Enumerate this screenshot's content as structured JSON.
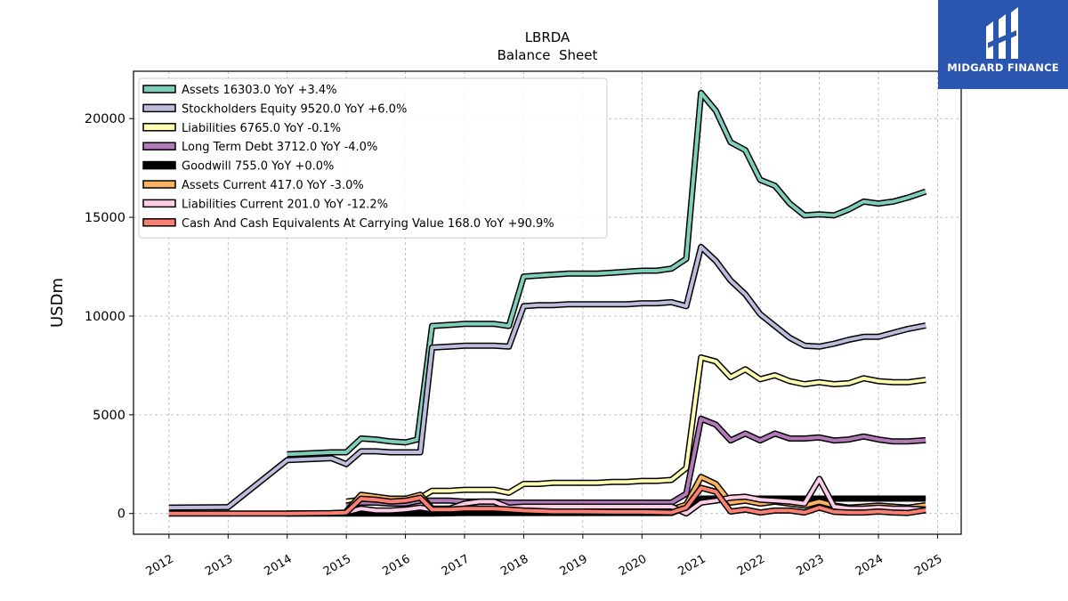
{
  "chart_data": {
    "type": "line",
    "title": "LBRDA",
    "subtitle": "Balance  Sheet",
    "ylabel": "USDm",
    "xlabel": "",
    "xlim": [
      2011.4,
      2025.4
    ],
    "ylim": [
      -1050,
      22400
    ],
    "x_ticks": [
      "2012",
      "2013",
      "2014",
      "2015",
      "2016",
      "2017",
      "2018",
      "2019",
      "2020",
      "2021",
      "2022",
      "2023",
      "2024",
      "2025"
    ],
    "y_ticks": [
      "0",
      "5000",
      "10000",
      "15000",
      "20000"
    ],
    "grid": true,
    "legend_position": "top-left",
    "series": [
      {
        "name": "Assets  16303.0 YoY +3.4%",
        "color": "#7fcdbb",
        "x": [
          2014.0,
          2014.75,
          2015.0,
          2015.25,
          2015.5,
          2015.75,
          2016.0,
          2016.2,
          2016.45,
          2016.75,
          2017.0,
          2017.25,
          2017.5,
          2017.75,
          2018.0,
          2018.25,
          2018.5,
          2018.75,
          2019.0,
          2019.25,
          2019.5,
          2019.75,
          2020.0,
          2020.25,
          2020.5,
          2020.75,
          2021.0,
          2021.25,
          2021.5,
          2021.75,
          2022.0,
          2022.25,
          2022.5,
          2022.75,
          2023.0,
          2023.25,
          2023.5,
          2023.75,
          2024.0,
          2024.25,
          2024.5,
          2024.8
        ],
        "values": [
          3000,
          3100,
          3100,
          3800,
          3750,
          3650,
          3600,
          3750,
          9500,
          9550,
          9600,
          9600,
          9600,
          9500,
          12000,
          12050,
          12100,
          12150,
          12150,
          12150,
          12200,
          12250,
          12300,
          12300,
          12400,
          12900,
          21300,
          20400,
          18800,
          18400,
          16900,
          16600,
          15700,
          15100,
          15150,
          15100,
          15400,
          15800,
          15700,
          15800,
          16000,
          16303
        ]
      },
      {
        "name": "Stockholders Equity  9520.0 YoY +6.0%",
        "color": "#bcbddc",
        "x": [
          2012.0,
          2013.0,
          2014.0,
          2014.75,
          2015.0,
          2015.25,
          2015.5,
          2015.75,
          2016.0,
          2016.25,
          2016.45,
          2016.75,
          2017.0,
          2017.25,
          2017.5,
          2017.75,
          2018.0,
          2018.25,
          2018.5,
          2018.75,
          2019.0,
          2019.25,
          2019.5,
          2019.75,
          2020.0,
          2020.25,
          2020.5,
          2020.75,
          2021.0,
          2021.25,
          2021.5,
          2021.75,
          2022.0,
          2022.25,
          2022.5,
          2022.75,
          2023.0,
          2023.25,
          2023.5,
          2023.75,
          2024.0,
          2024.25,
          2024.5,
          2024.8
        ],
        "values": [
          300,
          320,
          2700,
          2800,
          2500,
          3150,
          3150,
          3100,
          3100,
          3100,
          8400,
          8450,
          8500,
          8500,
          8500,
          8450,
          10500,
          10550,
          10550,
          10600,
          10600,
          10600,
          10600,
          10600,
          10650,
          10650,
          10700,
          10500,
          13500,
          12800,
          11800,
          11100,
          10100,
          9500,
          8900,
          8500,
          8450,
          8600,
          8800,
          8950,
          8950,
          9150,
          9350,
          9520
        ]
      },
      {
        "name": "Liabilities  6765.0 YoY -0.1%",
        "color": "#ffffb3",
        "x": [
          2015.0,
          2015.25,
          2015.5,
          2015.75,
          2016.0,
          2016.25,
          2016.45,
          2016.75,
          2017.0,
          2017.25,
          2017.5,
          2017.75,
          2018.0,
          2018.25,
          2018.5,
          2018.75,
          2019.0,
          2019.25,
          2019.5,
          2019.75,
          2020.0,
          2020.25,
          2020.5,
          2020.75,
          2021.0,
          2021.25,
          2021.5,
          2021.75,
          2022.0,
          2022.25,
          2022.5,
          2022.75,
          2023.0,
          2023.25,
          2023.5,
          2023.75,
          2024.0,
          2024.25,
          2024.5,
          2024.8
        ],
        "values": [
          600,
          700,
          700,
          750,
          750,
          800,
          1150,
          1150,
          1200,
          1200,
          1200,
          1050,
          1500,
          1500,
          1550,
          1550,
          1550,
          1550,
          1600,
          1600,
          1650,
          1650,
          1700,
          2300,
          7900,
          7700,
          6900,
          7300,
          6800,
          7000,
          6700,
          6550,
          6650,
          6550,
          6600,
          6850,
          6700,
          6650,
          6650,
          6765
        ]
      },
      {
        "name": "Long Term Debt  3712.0 YoY -4.0%",
        "color": "#b27ab9",
        "x": [
          2015.0,
          2015.25,
          2015.5,
          2015.75,
          2016.0,
          2016.25,
          2016.45,
          2016.75,
          2017.0,
          2017.25,
          2017.5,
          2017.75,
          2018.0,
          2018.25,
          2018.5,
          2018.75,
          2019.0,
          2019.25,
          2019.5,
          2019.75,
          2020.0,
          2020.25,
          2020.5,
          2020.75,
          2021.0,
          2021.25,
          2021.5,
          2021.75,
          2022.0,
          2022.25,
          2022.5,
          2022.75,
          2023.0,
          2023.25,
          2023.5,
          2023.75,
          2024.0,
          2024.25,
          2024.5,
          2024.8
        ],
        "values": [
          400,
          550,
          550,
          500,
          500,
          650,
          650,
          650,
          600,
          600,
          600,
          550,
          550,
          550,
          550,
          550,
          550,
          550,
          550,
          550,
          550,
          550,
          550,
          1000,
          4800,
          4500,
          3700,
          4050,
          3700,
          4050,
          3800,
          3800,
          3850,
          3700,
          3750,
          3900,
          3750,
          3650,
          3650,
          3712
        ]
      },
      {
        "name": "Goodwill  755.0 YoY +0.0%",
        "color": "#000000",
        "x": [
          2014.0,
          2015.0,
          2015.25,
          2015.5,
          2016.0,
          2016.25,
          2016.45,
          2017.0,
          2018.0,
          2019.0,
          2020.0,
          2020.5,
          2020.75,
          2021.0,
          2021.5,
          2022.0,
          2022.5,
          2023.0,
          2023.5,
          2024.0,
          2024.5,
          2024.8
        ],
        "values": [
          0,
          0,
          0,
          0,
          0,
          0,
          0,
          27,
          27,
          27,
          27,
          27,
          300,
          755,
          755,
          755,
          755,
          755,
          755,
          755,
          755,
          755
        ]
      },
      {
        "name": "Assets Current  417.0 YoY -3.0%",
        "color": "#fdb462",
        "x": [
          2015.0,
          2015.25,
          2015.5,
          2015.75,
          2016.0,
          2016.25,
          2016.45,
          2016.75,
          2017.0,
          2017.25,
          2017.5,
          2017.75,
          2018.0,
          2018.5,
          2019.0,
          2019.5,
          2020.0,
          2020.5,
          2020.75,
          2021.0,
          2021.25,
          2021.5,
          2021.75,
          2022.0,
          2022.25,
          2022.5,
          2022.75,
          2023.0,
          2023.25,
          2023.5,
          2023.75,
          2024.0,
          2024.25,
          2024.5,
          2024.8
        ],
        "values": [
          100,
          950,
          850,
          750,
          750,
          950,
          250,
          250,
          250,
          250,
          250,
          250,
          200,
          200,
          200,
          200,
          200,
          200,
          450,
          1850,
          1500,
          550,
          650,
          500,
          600,
          500,
          400,
          600,
          400,
          300,
          350,
          400,
          350,
          300,
          417
        ]
      },
      {
        "name": "Liabilities Current  201.0 YoY -12.2%",
        "color": "#fccde5",
        "x": [
          2015.0,
          2015.25,
          2015.5,
          2015.75,
          2016.0,
          2016.25,
          2016.45,
          2016.75,
          2017.0,
          2017.25,
          2017.5,
          2017.75,
          2018.0,
          2018.5,
          2019.0,
          2019.5,
          2020.0,
          2020.5,
          2020.75,
          2021.0,
          2021.25,
          2021.5,
          2021.75,
          2022.0,
          2022.25,
          2022.5,
          2022.75,
          2023.0,
          2023.25,
          2023.5,
          2023.75,
          2024.0,
          2024.25,
          2024.5,
          2024.8
        ],
        "values": [
          50,
          250,
          150,
          150,
          200,
          300,
          200,
          250,
          500,
          600,
          600,
          300,
          350,
          350,
          350,
          350,
          350,
          350,
          0,
          550,
          650,
          800,
          850,
          700,
          650,
          600,
          500,
          1750,
          350,
          250,
          250,
          300,
          250,
          250,
          201
        ]
      },
      {
        "name": "Cash And Cash Equivalents At Carrying Value  168.0 YoY +90.9%",
        "color": "#fb8072",
        "x": [
          2012.0,
          2013.0,
          2014.0,
          2014.75,
          2015.0,
          2015.25,
          2015.5,
          2015.75,
          2016.0,
          2016.25,
          2016.45,
          2016.75,
          2017.0,
          2017.25,
          2017.5,
          2017.75,
          2018.0,
          2018.5,
          2019.0,
          2019.5,
          2020.0,
          2020.5,
          2020.75,
          2021.0,
          2021.25,
          2021.5,
          2021.75,
          2022.0,
          2022.25,
          2022.5,
          2022.75,
          2023.0,
          2023.25,
          2023.5,
          2023.75,
          2024.0,
          2024.25,
          2024.5,
          2024.8
        ],
        "values": [
          0,
          0,
          0,
          20,
          50,
          750,
          700,
          600,
          650,
          800,
          200,
          200,
          250,
          250,
          250,
          200,
          150,
          100,
          100,
          80,
          80,
          50,
          300,
          1300,
          1100,
          100,
          200,
          50,
          150,
          150,
          50,
          300,
          80,
          50,
          50,
          100,
          50,
          30,
          168
        ]
      }
    ]
  }
}
